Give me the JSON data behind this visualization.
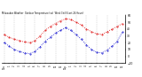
{
  "title": "Milwaukee Weather  Outdoor Temperature (vs)  Wind Chill (Last 24 Hours)",
  "temp": [
    32,
    28,
    25,
    23,
    21,
    20,
    23,
    30,
    38,
    44,
    48,
    52,
    55,
    54,
    50,
    46,
    40,
    36,
    33,
    32,
    36,
    40,
    44,
    48
  ],
  "windchill": [
    20,
    15,
    10,
    7,
    5,
    4,
    7,
    14,
    22,
    28,
    34,
    38,
    42,
    38,
    32,
    25,
    17,
    10,
    6,
    5,
    9,
    15,
    22,
    36
  ],
  "ylim": [
    -10,
    60
  ],
  "yticks": [
    -10,
    0,
    10,
    20,
    30,
    40,
    50,
    60
  ],
  "n_points": 24,
  "temp_color": "#dd0000",
  "windchill_color": "#0000cc",
  "title_color": "#000000",
  "bg_color": "#ffffff",
  "grid_color": "#aaaaaa"
}
